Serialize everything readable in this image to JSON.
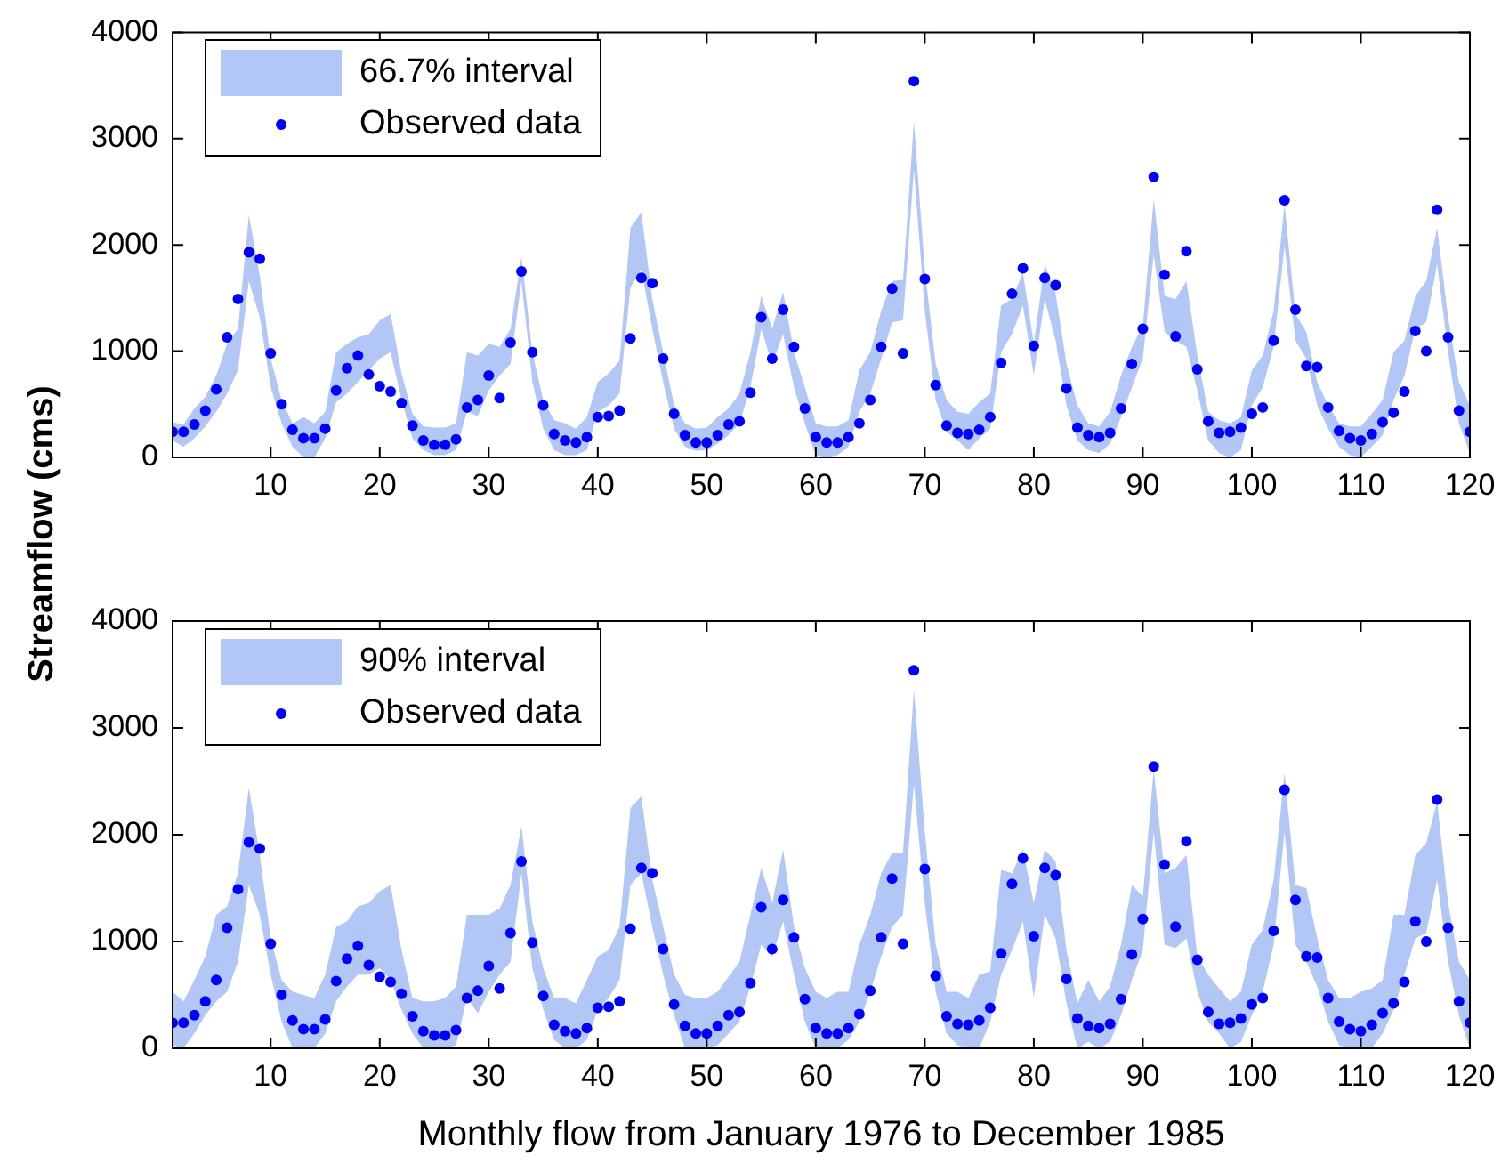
{
  "chart_data": [
    {
      "type": "scatter",
      "ylabel": "Streamflow (cms)",
      "legend": "top left",
      "marker": "circle",
      "xlim": [
        1,
        120
      ],
      "xticks": [
        10,
        20,
        30,
        40,
        50,
        60,
        70,
        80,
        90,
        100,
        110,
        120
      ],
      "ylim": [
        0,
        4000
      ],
      "yticks": [
        0,
        1000,
        2000,
        3000,
        4000
      ],
      "x": [
        1,
        2,
        3,
        4,
        5,
        6,
        7,
        8,
        9,
        10,
        11,
        12,
        13,
        14,
        15,
        16,
        17,
        18,
        19,
        20,
        21,
        22,
        23,
        24,
        25,
        26,
        27,
        28,
        29,
        30,
        31,
        32,
        33,
        34,
        35,
        36,
        37,
        38,
        39,
        40,
        41,
        42,
        43,
        44,
        45,
        46,
        47,
        48,
        49,
        50,
        51,
        52,
        53,
        54,
        55,
        56,
        57,
        58,
        59,
        60,
        61,
        62,
        63,
        64,
        65,
        66,
        67,
        68,
        69,
        70,
        71,
        72,
        73,
        74,
        75,
        76,
        77,
        78,
        79,
        80,
        81,
        82,
        83,
        84,
        85,
        86,
        87,
        88,
        89,
        90,
        91,
        92,
        93,
        94,
        95,
        96,
        97,
        98,
        99,
        100,
        101,
        102,
        103,
        104,
        105,
        106,
        107,
        108,
        109,
        110,
        111,
        112,
        113,
        114,
        115,
        116,
        117,
        118,
        119,
        120
      ],
      "series": [
        {
          "name": "66.7% interval",
          "type": "area",
          "color": "#b3c7f7",
          "values": [
            null,
            null,
            null,
            null,
            null,
            null,
            null,
            null,
            null,
            null,
            null,
            null,
            null,
            null,
            null,
            null,
            null,
            null,
            null,
            null,
            null,
            null,
            null,
            null,
            null,
            null,
            null,
            null,
            null,
            null,
            null,
            null,
            null,
            null,
            null,
            null,
            null,
            null,
            null,
            null,
            null,
            null,
            null,
            null,
            null,
            null,
            null,
            null,
            null,
            null,
            null,
            null,
            null,
            null,
            null,
            null,
            null,
            null,
            null,
            null,
            null,
            null,
            null,
            null,
            null,
            null,
            null,
            null,
            null,
            null,
            null,
            null,
            null,
            null,
            null,
            null,
            null,
            null,
            null,
            null,
            null,
            null,
            null,
            null,
            null,
            null,
            null,
            null,
            null,
            null,
            null,
            null,
            null,
            null,
            null,
            null,
            null,
            null,
            null,
            null,
            null,
            null,
            null,
            null,
            null,
            null,
            null,
            null,
            null,
            null,
            null,
            null,
            null,
            null,
            null,
            null,
            null,
            null,
            null,
            null
          ],
          "lower": [
            160,
            100,
            180,
            290,
            430,
            600,
            820,
            1660,
            1320,
            660,
            320,
            100,
            0,
            0,
            180,
            520,
            600,
            710,
            820,
            930,
            990,
            540,
            180,
            70,
            20,
            20,
            70,
            430,
            390,
            630,
            770,
            880,
            1660,
            710,
            270,
            70,
            20,
            20,
            70,
            430,
            490,
            600,
            1600,
            1770,
            1210,
            710,
            270,
            100,
            60,
            70,
            130,
            210,
            320,
            660,
            1210,
            880,
            1160,
            660,
            320,
            20,
            0,
            20,
            100,
            430,
            600,
            930,
            1270,
            1290,
            2710,
            1380,
            540,
            240,
            160,
            70,
            180,
            270,
            990,
            1160,
            1430,
            770,
            1490,
            1100,
            490,
            160,
            70,
            40,
            130,
            380,
            660,
            930,
            1910,
            1180,
            1100,
            1040,
            630,
            160,
            40,
            0,
            70,
            490,
            660,
            1040,
            1990,
            1100,
            930,
            490,
            270,
            100,
            20,
            0,
            100,
            210,
            540,
            770,
            1210,
            1270,
            1820,
            990,
            320,
            40
          ],
          "upper": [
            330,
            310,
            460,
            570,
            770,
            1070,
            1210,
            2280,
            1710,
            930,
            540,
            320,
            380,
            320,
            430,
            990,
            1070,
            1130,
            1160,
            1290,
            1350,
            790,
            410,
            290,
            280,
            280,
            320,
            990,
            960,
            1070,
            1040,
            1210,
            1890,
            990,
            540,
            350,
            320,
            270,
            380,
            710,
            790,
            910,
            2160,
            2310,
            1490,
            990,
            490,
            320,
            270,
            280,
            380,
            460,
            600,
            990,
            1520,
            1210,
            1560,
            990,
            660,
            320,
            290,
            290,
            350,
            820,
            990,
            1380,
            1660,
            1670,
            3160,
            1770,
            880,
            540,
            430,
            410,
            520,
            600,
            1430,
            1490,
            1740,
            1070,
            1820,
            1540,
            880,
            490,
            320,
            290,
            430,
            770,
            1040,
            1240,
            2430,
            1520,
            1490,
            1660,
            960,
            430,
            350,
            320,
            380,
            820,
            960,
            1380,
            2380,
            1350,
            1180,
            710,
            490,
            320,
            290,
            290,
            410,
            540,
            990,
            1100,
            1520,
            1660,
            2160,
            1320,
            710,
            490
          ]
        },
        {
          "name": "Observed data",
          "type": "scatter",
          "color": "#0000ff",
          "values": [
            240,
            240,
            310,
            440,
            640,
            1130,
            1490,
            1930,
            1870,
            980,
            500,
            260,
            180,
            180,
            270,
            630,
            840,
            960,
            780,
            670,
            620,
            510,
            300,
            160,
            120,
            120,
            170,
            470,
            540,
            770,
            560,
            1080,
            1750,
            990,
            490,
            220,
            160,
            140,
            190,
            380,
            390,
            440,
            1120,
            1690,
            1640,
            930,
            410,
            210,
            140,
            140,
            210,
            310,
            340,
            610,
            1320,
            930,
            1390,
            1040,
            460,
            190,
            140,
            140,
            190,
            320,
            540,
            1040,
            1590,
            980,
            3540,
            1680,
            680,
            300,
            230,
            220,
            260,
            380,
            890,
            1540,
            1780,
            1050,
            1690,
            1620,
            650,
            280,
            210,
            190,
            230,
            460,
            880,
            1210,
            2640,
            1720,
            1140,
            1940,
            830,
            340,
            230,
            240,
            280,
            410,
            470,
            1100,
            2420,
            1390,
            860,
            850,
            470,
            250,
            180,
            160,
            220,
            330,
            420,
            620,
            1190,
            1000,
            2330,
            1130,
            440,
            240
          ]
        }
      ]
    },
    {
      "type": "scatter",
      "xlabel": "Monthly flow from January 1976 to December 1985",
      "legend": "top left",
      "marker": "circle",
      "xlim": [
        1,
        120
      ],
      "xticks": [
        10,
        20,
        30,
        40,
        50,
        60,
        70,
        80,
        90,
        100,
        110,
        120
      ],
      "ylim": [
        0,
        4000
      ],
      "yticks": [
        0,
        1000,
        2000,
        3000,
        4000
      ],
      "x": [
        1,
        2,
        3,
        4,
        5,
        6,
        7,
        8,
        9,
        10,
        11,
        12,
        13,
        14,
        15,
        16,
        17,
        18,
        19,
        20,
        21,
        22,
        23,
        24,
        25,
        26,
        27,
        28,
        29,
        30,
        31,
        32,
        33,
        34,
        35,
        36,
        37,
        38,
        39,
        40,
        41,
        42,
        43,
        44,
        45,
        46,
        47,
        48,
        49,
        50,
        51,
        52,
        53,
        54,
        55,
        56,
        57,
        58,
        59,
        60,
        61,
        62,
        63,
        64,
        65,
        66,
        67,
        68,
        69,
        70,
        71,
        72,
        73,
        74,
        75,
        76,
        77,
        78,
        79,
        80,
        81,
        82,
        83,
        84,
        85,
        86,
        87,
        88,
        89,
        90,
        91,
        92,
        93,
        94,
        95,
        96,
        97,
        98,
        99,
        100,
        101,
        102,
        103,
        104,
        105,
        106,
        107,
        108,
        109,
        110,
        111,
        112,
        113,
        114,
        115,
        116,
        117,
        118,
        119,
        120
      ],
      "series": [
        {
          "name": "90% interval",
          "type": "area",
          "color": "#b3c7f7",
          "values": [
            null,
            null,
            null,
            null,
            null,
            null,
            null,
            null,
            null,
            null,
            null,
            null,
            null,
            null,
            null,
            null,
            null,
            null,
            null,
            null,
            null,
            null,
            null,
            null,
            null,
            null,
            null,
            null,
            null,
            null,
            null,
            null,
            null,
            null,
            null,
            null,
            null,
            null,
            null,
            null,
            null,
            null,
            null,
            null,
            null,
            null,
            null,
            null,
            null,
            null,
            null,
            null,
            null,
            null,
            null,
            null,
            null,
            null,
            null,
            null,
            null,
            null,
            null,
            null,
            null,
            null,
            null,
            null,
            null,
            null,
            null,
            null,
            null,
            null,
            null,
            null,
            null,
            null,
            null,
            null,
            null,
            null,
            null,
            null,
            null,
            null,
            null,
            null,
            null,
            null,
            null,
            null,
            null,
            null,
            null,
            null,
            null,
            null,
            null,
            null,
            null,
            null,
            null,
            null,
            null,
            null,
            null,
            null,
            null,
            null,
            null,
            null,
            null,
            null,
            null,
            null,
            null,
            null,
            null,
            null
          ],
          "lower": [
            30,
            0,
            140,
            310,
            440,
            530,
            810,
            1530,
            1250,
            690,
            250,
            0,
            0,
            0,
            140,
            440,
            580,
            690,
            690,
            750,
            640,
            360,
            140,
            0,
            0,
            0,
            30,
            470,
            330,
            530,
            690,
            810,
            1640,
            750,
            360,
            80,
            0,
            0,
            80,
            360,
            470,
            640,
            1530,
            1640,
            1140,
            690,
            310,
            0,
            0,
            0,
            30,
            140,
            250,
            580,
            970,
            860,
            1190,
            690,
            250,
            0,
            0,
            0,
            80,
            250,
            530,
            860,
            1140,
            1250,
            2470,
            1360,
            530,
            140,
            30,
            0,
            0,
            250,
            690,
            920,
            1190,
            470,
            1250,
            1030,
            420,
            0,
            60,
            0,
            60,
            310,
            640,
            920,
            2030,
            970,
            940,
            1030,
            530,
            250,
            140,
            0,
            60,
            310,
            530,
            970,
            2030,
            970,
            810,
            580,
            250,
            30,
            0,
            0,
            0,
            140,
            360,
            690,
            1030,
            1080,
            1580,
            810,
            310,
            0
          ],
          "upper": [
            530,
            440,
            640,
            860,
            1250,
            1330,
            1640,
            2440,
            1810,
            1030,
            640,
            530,
            500,
            470,
            690,
            1140,
            1190,
            1330,
            1360,
            1470,
            1530,
            920,
            470,
            440,
            440,
            470,
            580,
            1250,
            1250,
            1250,
            1310,
            1530,
            2080,
            1190,
            750,
            470,
            470,
            420,
            640,
            860,
            920,
            1140,
            2250,
            2360,
            1580,
            1140,
            690,
            500,
            470,
            470,
            530,
            670,
            810,
            1250,
            1690,
            1360,
            1860,
            1140,
            750,
            530,
            470,
            530,
            530,
            970,
            1250,
            1640,
            1830,
            1830,
            3360,
            2030,
            970,
            530,
            530,
            470,
            690,
            720,
            1670,
            1640,
            1860,
            1360,
            1860,
            1750,
            920,
            420,
            640,
            440,
            580,
            970,
            1530,
            1420,
            2610,
            1640,
            1690,
            1810,
            860,
            690,
            560,
            440,
            530,
            970,
            1110,
            1580,
            2580,
            1530,
            1500,
            1030,
            640,
            470,
            470,
            530,
            560,
            640,
            1250,
            1250,
            1810,
            1920,
            2310,
            1360,
            810,
            640
          ]
        },
        {
          "name": "Observed data",
          "type": "scatter",
          "color": "#0000ff",
          "values": [
            240,
            240,
            310,
            440,
            640,
            1130,
            1490,
            1930,
            1870,
            980,
            500,
            260,
            180,
            180,
            270,
            630,
            840,
            960,
            780,
            670,
            620,
            510,
            300,
            160,
            120,
            120,
            170,
            470,
            540,
            770,
            560,
            1080,
            1750,
            990,
            490,
            220,
            160,
            140,
            190,
            380,
            390,
            440,
            1120,
            1690,
            1640,
            930,
            410,
            210,
            140,
            140,
            210,
            310,
            340,
            610,
            1320,
            930,
            1390,
            1040,
            460,
            190,
            140,
            140,
            190,
            320,
            540,
            1040,
            1590,
            980,
            3540,
            1680,
            680,
            300,
            230,
            220,
            260,
            380,
            890,
            1540,
            1780,
            1050,
            1690,
            1620,
            650,
            280,
            210,
            190,
            230,
            460,
            880,
            1210,
            2640,
            1720,
            1140,
            1940,
            830,
            340,
            230,
            240,
            280,
            410,
            470,
            1100,
            2420,
            1390,
            860,
            850,
            470,
            250,
            180,
            160,
            220,
            330,
            420,
            620,
            1190,
            1000,
            2330,
            1130,
            440,
            240
          ]
        }
      ]
    }
  ]
}
